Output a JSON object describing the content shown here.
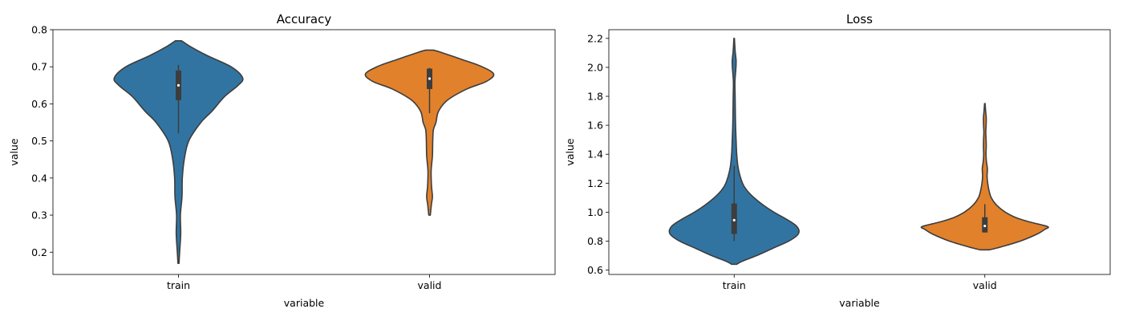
{
  "chart_data": [
    {
      "type": "violin",
      "title": "Accuracy",
      "xlabel": "variable",
      "ylabel": "value",
      "categories": [
        "train",
        "valid"
      ],
      "ylim": [
        0.14,
        0.8
      ],
      "yticks": [
        0.2,
        0.3,
        0.4,
        0.5,
        0.6,
        0.7,
        0.8
      ],
      "ytick_labels": [
        "0.2",
        "0.3",
        "0.4",
        "0.5",
        "0.6",
        "0.7",
        "0.8"
      ],
      "grid": false,
      "colors": [
        "#3274a1",
        "#e1812c"
      ],
      "violins": [
        {
          "name": "train",
          "box": {
            "whisker_low": 0.52,
            "q1": 0.61,
            "median": 0.65,
            "q3": 0.69,
            "whisker_high": 0.705
          },
          "outline": [
            [
              0.17,
              0.008
            ],
            [
              0.2,
              0.018
            ],
            [
              0.25,
              0.035
            ],
            [
              0.3,
              0.03
            ],
            [
              0.35,
              0.055
            ],
            [
              0.4,
              0.06
            ],
            [
              0.45,
              0.09
            ],
            [
              0.5,
              0.16
            ],
            [
              0.55,
              0.35
            ],
            [
              0.58,
              0.52
            ],
            [
              0.62,
              0.72
            ],
            [
              0.65,
              0.93
            ],
            [
              0.67,
              1.0
            ],
            [
              0.7,
              0.82
            ],
            [
              0.73,
              0.45
            ],
            [
              0.755,
              0.18
            ],
            [
              0.77,
              0.05
            ]
          ]
        },
        {
          "name": "valid",
          "box": {
            "whisker_low": 0.575,
            "q1": 0.64,
            "median": 0.668,
            "q3": 0.695,
            "whisker_high": 0.697
          },
          "outline": [
            [
              0.3,
              0.012
            ],
            [
              0.33,
              0.03
            ],
            [
              0.35,
              0.045
            ],
            [
              0.38,
              0.03
            ],
            [
              0.42,
              0.025
            ],
            [
              0.46,
              0.045
            ],
            [
              0.5,
              0.05
            ],
            [
              0.53,
              0.06
            ],
            [
              0.55,
              0.1
            ],
            [
              0.58,
              0.14
            ],
            [
              0.61,
              0.28
            ],
            [
              0.64,
              0.58
            ],
            [
              0.66,
              0.88
            ],
            [
              0.68,
              1.0
            ],
            [
              0.7,
              0.82
            ],
            [
              0.72,
              0.5
            ],
            [
              0.74,
              0.16
            ],
            [
              0.745,
              0.06
            ]
          ]
        }
      ]
    },
    {
      "type": "violin",
      "title": "Loss",
      "xlabel": "variable",
      "ylabel": "value",
      "categories": [
        "train",
        "valid"
      ],
      "ylim": [
        0.57,
        2.26
      ],
      "yticks": [
        0.6,
        0.8,
        1.0,
        1.2,
        1.4,
        1.6,
        1.8,
        2.0,
        2.2
      ],
      "ytick_labels": [
        "0.6",
        "0.8",
        "1.0",
        "1.2",
        "1.4",
        "1.6",
        "1.8",
        "2.0",
        "2.2"
      ],
      "grid": false,
      "colors": [
        "#3274a1",
        "#e1812c"
      ],
      "violins": [
        {
          "name": "train",
          "box": {
            "whisker_low": 0.8,
            "q1": 0.85,
            "median": 0.945,
            "q3": 1.06,
            "whisker_high": 1.32
          },
          "outline": [
            [
              0.64,
              0.04
            ],
            [
              0.66,
              0.12
            ],
            [
              0.7,
              0.35
            ],
            [
              0.75,
              0.6
            ],
            [
              0.8,
              0.85
            ],
            [
              0.85,
              1.0
            ],
            [
              0.9,
              0.98
            ],
            [
              0.95,
              0.82
            ],
            [
              1.0,
              0.62
            ],
            [
              1.05,
              0.45
            ],
            [
              1.1,
              0.31
            ],
            [
              1.15,
              0.2
            ],
            [
              1.2,
              0.13
            ],
            [
              1.3,
              0.065
            ],
            [
              1.4,
              0.04
            ],
            [
              1.5,
              0.03
            ],
            [
              1.6,
              0.022
            ],
            [
              1.7,
              0.018
            ],
            [
              1.8,
              0.015
            ],
            [
              1.9,
              0.012
            ],
            [
              2.0,
              0.028
            ],
            [
              2.05,
              0.03
            ],
            [
              2.1,
              0.018
            ],
            [
              2.15,
              0.01
            ],
            [
              2.2,
              0.004
            ]
          ]
        },
        {
          "name": "valid",
          "box": {
            "whisker_low": 0.86,
            "q1": 0.86,
            "median": 0.905,
            "q3": 0.965,
            "whisker_high": 1.055
          },
          "outline": [
            [
              0.74,
              0.07
            ],
            [
              0.76,
              0.25
            ],
            [
              0.8,
              0.55
            ],
            [
              0.85,
              0.82
            ],
            [
              0.88,
              0.93
            ],
            [
              0.9,
              0.98
            ],
            [
              0.93,
              0.72
            ],
            [
              0.96,
              0.5
            ],
            [
              1.0,
              0.32
            ],
            [
              1.05,
              0.18
            ],
            [
              1.1,
              0.1
            ],
            [
              1.15,
              0.065
            ],
            [
              1.2,
              0.045
            ],
            [
              1.25,
              0.035
            ],
            [
              1.3,
              0.04
            ],
            [
              1.35,
              0.025
            ],
            [
              1.4,
              0.018
            ],
            [
              1.45,
              0.022
            ],
            [
              1.5,
              0.02
            ],
            [
              1.55,
              0.015
            ],
            [
              1.6,
              0.02
            ],
            [
              1.65,
              0.022
            ],
            [
              1.7,
              0.012
            ],
            [
              1.75,
              0.004
            ]
          ]
        }
      ]
    }
  ]
}
